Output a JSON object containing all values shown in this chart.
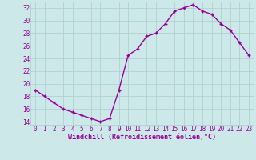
{
  "x": [
    0,
    1,
    2,
    3,
    4,
    5,
    6,
    7,
    8,
    9,
    10,
    11,
    12,
    13,
    14,
    15,
    16,
    17,
    18,
    19,
    20,
    21,
    22,
    23
  ],
  "y": [
    19,
    18,
    17,
    16,
    15.5,
    15,
    14.5,
    14,
    14.5,
    19,
    24.5,
    25.5,
    27.5,
    28,
    29.5,
    31.5,
    32,
    32.5,
    31.5,
    31,
    29.5,
    28.5,
    26.5,
    24.5
  ],
  "line_color": "#990099",
  "marker": "+",
  "marker_color": "#990099",
  "bg_color": "#cce8e8",
  "grid_color": "#aacece",
  "xlabel": "Windchill (Refroidissement éolien,°C)",
  "xlabel_color": "#990099",
  "tick_color": "#990099",
  "ylim": [
    13.5,
    33
  ],
  "xlim": [
    -0.5,
    23.5
  ],
  "yticks": [
    14,
    16,
    18,
    20,
    22,
    24,
    26,
    28,
    30,
    32
  ],
  "xticks": [
    0,
    1,
    2,
    3,
    4,
    5,
    6,
    7,
    8,
    9,
    10,
    11,
    12,
    13,
    14,
    15,
    16,
    17,
    18,
    19,
    20,
    21,
    22,
    23
  ],
  "xtick_labels": [
    "0",
    "1",
    "2",
    "3",
    "4",
    "5",
    "6",
    "7",
    "8",
    "9",
    "10",
    "11",
    "12",
    "13",
    "14",
    "15",
    "16",
    "17",
    "18",
    "19",
    "20",
    "21",
    "22",
    "23"
  ]
}
